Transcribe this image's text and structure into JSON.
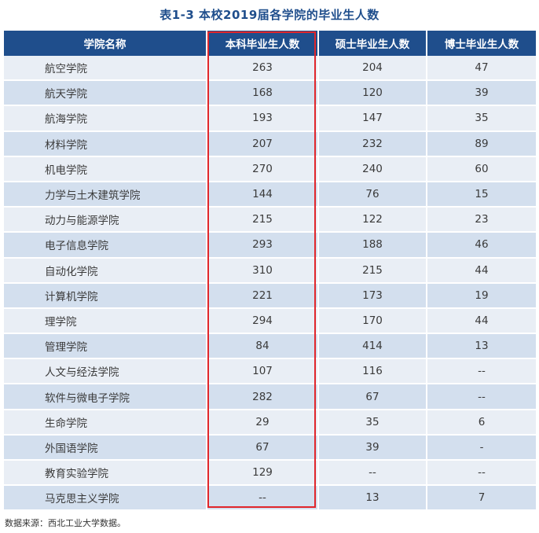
{
  "title": "表1-3   本校2019届各学院的毕业生人数",
  "headers": [
    "学院名称",
    "本科毕业生人数",
    "硕士毕业生人数",
    "博士毕业生人数"
  ],
  "rows": [
    {
      "name": "航空学院",
      "bachelor": "263",
      "master": "204",
      "doctor": "47"
    },
    {
      "name": "航天学院",
      "bachelor": "168",
      "master": "120",
      "doctor": "39"
    },
    {
      "name": "航海学院",
      "bachelor": "193",
      "master": "147",
      "doctor": "35"
    },
    {
      "name": "材料学院",
      "bachelor": "207",
      "master": "232",
      "doctor": "89"
    },
    {
      "name": "机电学院",
      "bachelor": "270",
      "master": "240",
      "doctor": "60"
    },
    {
      "name": "力学与土木建筑学院",
      "bachelor": "144",
      "master": "76",
      "doctor": "15"
    },
    {
      "name": "动力与能源学院",
      "bachelor": "215",
      "master": "122",
      "doctor": "23"
    },
    {
      "name": "电子信息学院",
      "bachelor": "293",
      "master": "188",
      "doctor": "46"
    },
    {
      "name": "自动化学院",
      "bachelor": "310",
      "master": "215",
      "doctor": "44"
    },
    {
      "name": "计算机学院",
      "bachelor": "221",
      "master": "173",
      "doctor": "19"
    },
    {
      "name": "理学院",
      "bachelor": "294",
      "master": "170",
      "doctor": "44"
    },
    {
      "name": "管理学院",
      "bachelor": "84",
      "master": "414",
      "doctor": "13"
    },
    {
      "name": "人文与经法学院",
      "bachelor": "107",
      "master": "116",
      "doctor": "--"
    },
    {
      "name": "软件与微电子学院",
      "bachelor": "282",
      "master": "67",
      "doctor": "--"
    },
    {
      "name": "生命学院",
      "bachelor": "29",
      "master": "35",
      "doctor": "6"
    },
    {
      "name": "外国语学院",
      "bachelor": "67",
      "master": "39",
      "doctor": "-"
    },
    {
      "name": "教育实验学院",
      "bachelor": "129",
      "master": "--",
      "doctor": "--"
    },
    {
      "name": "马克思主义学院",
      "bachelor": "--",
      "master": "13",
      "doctor": "7"
    }
  ],
  "source": "数据来源：西北工业大学数据。",
  "colors": {
    "header_bg": "#1f4e8c",
    "row_light": "#e9eef5",
    "row_dark": "#d3dfee",
    "highlight_border": "#e0262b",
    "title_color": "#1f4e8c"
  }
}
